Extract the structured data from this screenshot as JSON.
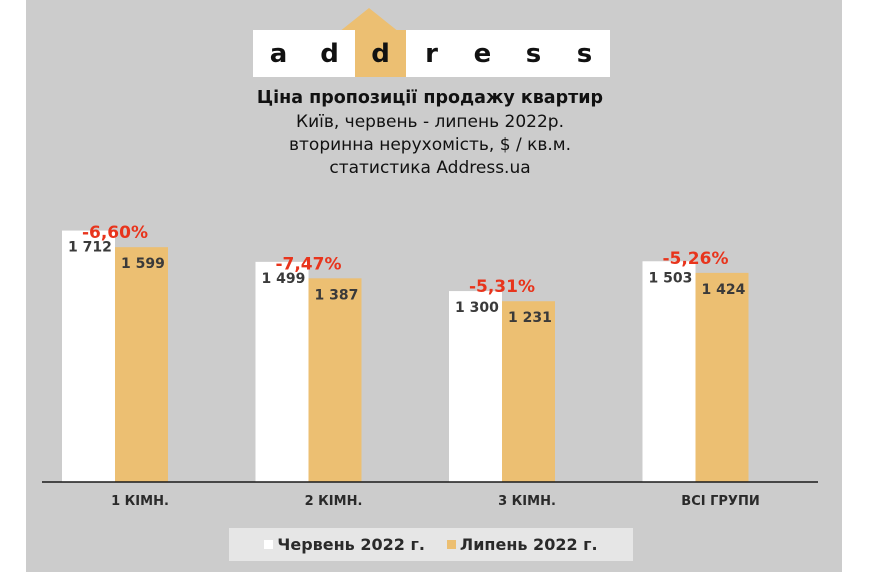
{
  "logo": {
    "letters": [
      "a",
      "d",
      "d",
      "r",
      "e",
      "s",
      "s"
    ],
    "highlight_color": "#ecbf72"
  },
  "header": {
    "title": "Ціна пропозиції продажу квартир",
    "subtitle_1": "Київ, червень - липень 2022р.",
    "subtitle_2": "вторинна нерухомість, $ / кв.м.",
    "subtitle_3": "статистика  Address.ua"
  },
  "colors": {
    "june": "#ffffff",
    "july": "#ecbf72",
    "change": "#e8341c"
  },
  "chart_data": {
    "type": "bar",
    "title": "Ціна пропозиції продажу квартир",
    "categories": [
      "1 КІМН.",
      "2 КІМН.",
      "3 КІМН.",
      "ВСІ ГРУПИ"
    ],
    "category_labels": [
      "1 КІМН.",
      "2 КІМН.",
      "3 КІМН.",
      "ВСІ ГРУПИ"
    ],
    "series": [
      {
        "name": "Червень 2022 г.",
        "values": [
          1712,
          1499,
          1300,
          1503
        ],
        "labels": [
          "1 712",
          "1 499",
          "1 300",
          "1 503"
        ]
      },
      {
        "name": "Липень 2022 г.",
        "values": [
          1599,
          1387,
          1231,
          1424
        ],
        "labels": [
          "1 599",
          "1 387",
          "1 231",
          "1 424"
        ]
      }
    ],
    "changes": [
      "-6,60%",
      "-7,47%",
      "-5,31%",
      "-5,26%"
    ],
    "ylim": [
      0,
      1750
    ],
    "grid": false,
    "legend_position": "bottom"
  },
  "legend": {
    "items": [
      {
        "label": "Червень 2022 г.",
        "color": "#ffffff"
      },
      {
        "label": "Липень 2022 г.",
        "color": "#ecbf72"
      }
    ]
  }
}
